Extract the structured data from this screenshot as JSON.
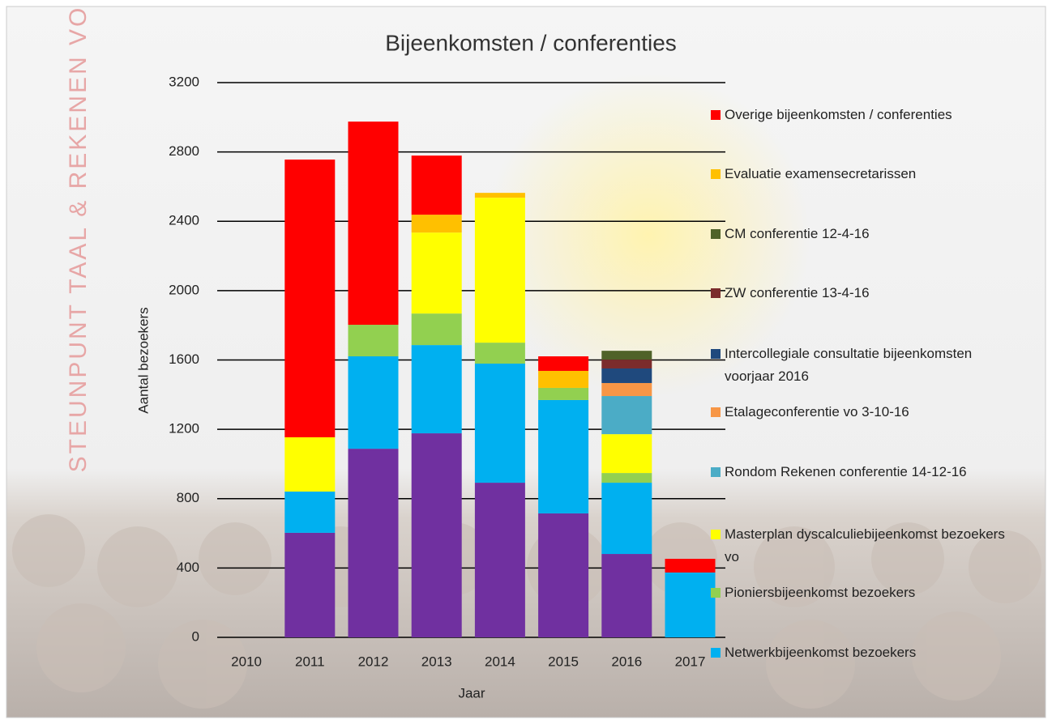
{
  "chart_data": {
    "type": "stacked_bar",
    "title": "Bijeenkomsten / conferenties",
    "watermark": "STEUNPUNT TAAL & REKENEN VO",
    "x_label": "Jaar",
    "y_label": "Aantal bezoekers",
    "categories": [
      "2010",
      "2011",
      "2012",
      "2013",
      "2014",
      "2015",
      "2016",
      "2017"
    ],
    "ylim": [
      0,
      3200
    ],
    "yticks": [
      0,
      400,
      800,
      1200,
      1600,
      2000,
      2400,
      2800,
      3200
    ],
    "grid": true,
    "legend": "right",
    "series": [
      {
        "name": null,
        "color": "#7030a0",
        "values": [
          0,
          603,
          1088,
          1177,
          892,
          715,
          481,
          0
        ]
      },
      {
        "name": "Netwerkbijeenkomst bezoekers",
        "color": "#00b0f0",
        "values": [
          0,
          238,
          533,
          509,
          687,
          654,
          411,
          374
        ]
      },
      {
        "name": "Pioniersbijeenkomst bezoekers",
        "color": "#92d050",
        "values": [
          0,
          0,
          182,
          182,
          121,
          70,
          56,
          0
        ]
      },
      {
        "name": "Masterplan dyscalculiebijeenkomst bezoekers vo",
        "color": "#ffff00",
        "values": [
          0,
          313,
          0,
          467,
          836,
          0,
          224,
          0
        ]
      },
      {
        "name": "Rondom Rekenen conferentie 14-12-16",
        "color": "#4bacc6",
        "values": [
          0,
          0,
          0,
          0,
          0,
          0,
          220,
          0
        ]
      },
      {
        "name": "Etalageconferentie vo 3-10-16",
        "color": "#f79646",
        "values": [
          0,
          0,
          0,
          0,
          0,
          0,
          75,
          0
        ]
      },
      {
        "name": "Intercollegiale consultatie bijeenkomsten voorjaar 2016",
        "color": "#1f497d",
        "values": [
          0,
          0,
          0,
          0,
          0,
          0,
          84,
          0
        ]
      },
      {
        "name": "ZW conferentie 13-4-16",
        "color": "#7b2c2c",
        "values": [
          0,
          0,
          0,
          0,
          0,
          0,
          51,
          0
        ]
      },
      {
        "name": "CM conferentie 12-4-16",
        "color": "#4f6228",
        "values": [
          0,
          0,
          0,
          0,
          0,
          0,
          51,
          0
        ]
      },
      {
        "name": "Evaluatie examensecretarissen",
        "color": "#ffc000",
        "values": [
          0,
          0,
          0,
          103,
          28,
          98,
          0,
          0
        ]
      },
      {
        "name": "Overige bijeenkomsten / conferenties",
        "color": "#ff0000",
        "values": [
          0,
          1602,
          1172,
          341,
          0,
          84,
          0,
          79
        ]
      }
    ]
  }
}
